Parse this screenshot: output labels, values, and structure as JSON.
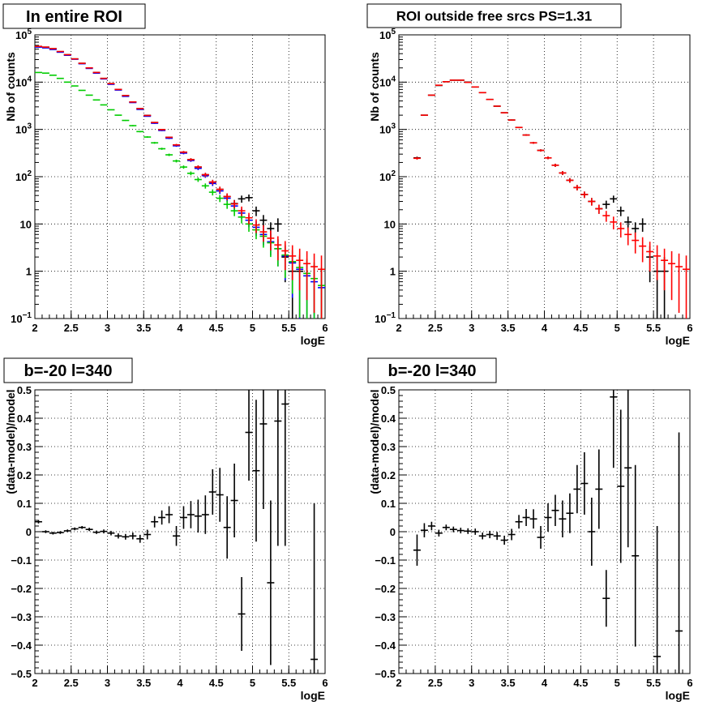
{
  "chart_data": [
    {
      "type": "scatter",
      "title": "In entire ROI",
      "xlabel": "logE",
      "ylabel": "Nb of counts",
      "xlim": [
        2,
        6
      ],
      "ylim": [
        0.1,
        100000
      ],
      "yscale": "log",
      "grid": true,
      "x_ticks": [
        "2",
        "2.5",
        "3",
        "3.5",
        "4",
        "4.5",
        "5",
        "5.5",
        "6"
      ],
      "y_ticks": [
        {
          "v": 0.1,
          "b": "10",
          "e": "−1"
        },
        {
          "v": 1,
          "b": "1",
          "e": ""
        },
        {
          "v": 10,
          "b": "10",
          "e": ""
        },
        {
          "v": 100,
          "b": "10",
          "e": "2"
        },
        {
          "v": 1000,
          "b": "10",
          "e": "3"
        },
        {
          "v": 10000,
          "b": "10",
          "e": "4"
        },
        {
          "v": 100000,
          "b": "10",
          "e": "5"
        }
      ],
      "series": [
        {
          "color": "#000000",
          "x_halfwidth": 0.05,
          "x": [
            2.05,
            2.15,
            2.25,
            2.35,
            2.45,
            2.55,
            2.65,
            2.75,
            2.85,
            2.95,
            3.05,
            3.15,
            3.25,
            3.35,
            3.45,
            3.55,
            3.65,
            3.75,
            3.85,
            3.95,
            4.05,
            4.15,
            4.25,
            4.35,
            4.45,
            4.55,
            4.65,
            4.75,
            4.85,
            4.95,
            5.05,
            5.15,
            5.25,
            5.35,
            5.45,
            5.55,
            5.65
          ],
          "y": [
            57000,
            55000,
            51000,
            44000,
            38000,
            31000,
            25000,
            20000,
            16000,
            12000,
            9300,
            7000,
            5200,
            3800,
            2750,
            1980,
            1400,
            990,
            680,
            470,
            330,
            230,
            160,
            110,
            77,
            54,
            38,
            27,
            34,
            36,
            19,
            12,
            8,
            10,
            2,
            1,
            1
          ]
        },
        {
          "color": "#0000ff",
          "x_halfwidth": 0.05,
          "x": [
            2.05,
            2.15,
            2.25,
            2.35,
            2.45,
            2.55,
            2.65,
            2.75,
            2.85,
            2.95,
            3.05,
            3.15,
            3.25,
            3.35,
            3.45,
            3.55,
            3.65,
            3.75,
            3.85,
            3.95,
            4.05,
            4.15,
            4.25,
            4.35,
            4.45,
            4.55,
            4.65,
            4.75,
            4.85,
            4.95,
            5.05,
            5.15,
            5.25,
            5.35,
            5.45,
            5.55,
            5.65,
            5.75,
            5.85,
            5.95
          ],
          "y": [
            55000,
            53000,
            49000,
            43000,
            37000,
            30500,
            24500,
            19500,
            15500,
            11700,
            9000,
            6800,
            5000,
            3700,
            2650,
            1900,
            1350,
            950,
            650,
            450,
            315,
            220,
            150,
            105,
            72,
            50,
            35,
            24,
            17,
            12,
            8.5,
            6,
            4.2,
            3,
            2.1,
            1.5,
            1.1,
            0.8,
            0.6,
            0.45
          ]
        },
        {
          "color": "#00cc00",
          "x_halfwidth": 0.05,
          "x": [
            2.05,
            2.15,
            2.25,
            2.35,
            2.45,
            2.55,
            2.65,
            2.75,
            2.85,
            2.95,
            3.05,
            3.15,
            3.25,
            3.35,
            3.45,
            3.55,
            3.65,
            3.75,
            3.85,
            3.95,
            4.05,
            4.15,
            4.25,
            4.35,
            4.45,
            4.55,
            4.65,
            4.75,
            4.85,
            4.95,
            5.05,
            5.15,
            5.25,
            5.35,
            5.45,
            5.55,
            5.65,
            5.75,
            5.85,
            5.95
          ],
          "y": [
            16000,
            15500,
            14000,
            12000,
            10000,
            8300,
            6700,
            5300,
            4200,
            3300,
            2600,
            2000,
            1550,
            1200,
            900,
            690,
            520,
            390,
            290,
            215,
            160,
            118,
            87,
            64,
            47,
            35,
            26,
            19,
            14,
            10,
            7.5,
            5.5,
            4,
            3,
            2.2,
            1.6,
            1.2,
            0.9,
            0.7,
            0.5
          ]
        },
        {
          "color": "#ff0000",
          "x_halfwidth": 0.05,
          "x": [
            2.05,
            2.15,
            2.25,
            2.35,
            2.45,
            2.55,
            2.65,
            2.75,
            2.85,
            2.95,
            3.05,
            3.15,
            3.25,
            3.35,
            3.45,
            3.55,
            3.65,
            3.75,
            3.85,
            3.95,
            4.05,
            4.15,
            4.25,
            4.35,
            4.45,
            4.55,
            4.65,
            4.75,
            4.85,
            4.95,
            5.05,
            5.15,
            5.25,
            5.35,
            5.45,
            5.55,
            5.65,
            5.75,
            5.85,
            5.95
          ],
          "y": [
            57000,
            55000,
            51000,
            44500,
            38000,
            31000,
            25000,
            20000,
            16000,
            12000,
            9300,
            7000,
            5200,
            3800,
            2750,
            1970,
            1400,
            990,
            680,
            470,
            330,
            230,
            160,
            110,
            77,
            54,
            38,
            26.5,
            19,
            13.5,
            9.5,
            6.8,
            5,
            3.6,
            2.7,
            2.1,
            1.7,
            1.45,
            1.25,
            1.1
          ]
        }
      ]
    },
    {
      "type": "scatter",
      "title": "ROI outside free srcs PS=1.31",
      "xlabel": "logE",
      "ylabel": "Nb of counts",
      "xlim": [
        2,
        6
      ],
      "ylim": [
        0.1,
        100000
      ],
      "yscale": "log",
      "grid": true,
      "x_ticks": [
        "2",
        "2.5",
        "3",
        "3.5",
        "4",
        "4.5",
        "5",
        "5.5",
        "6"
      ],
      "y_ticks": [
        {
          "v": 0.1,
          "b": "10",
          "e": "−1"
        },
        {
          "v": 1,
          "b": "1",
          "e": ""
        },
        {
          "v": 10,
          "b": "10",
          "e": ""
        },
        {
          "v": 100,
          "b": "10",
          "e": "2"
        },
        {
          "v": 1000,
          "b": "10",
          "e": "3"
        },
        {
          "v": 10000,
          "b": "10",
          "e": "4"
        },
        {
          "v": 100000,
          "b": "10",
          "e": "5"
        }
      ],
      "series": [
        {
          "color": "#000000",
          "x_halfwidth": 0.05,
          "x": [
            2.25,
            2.35,
            2.45,
            2.55,
            2.65,
            2.75,
            2.85,
            2.95,
            3.05,
            3.15,
            3.25,
            3.35,
            3.45,
            3.55,
            3.65,
            3.75,
            3.85,
            3.95,
            4.05,
            4.15,
            4.25,
            4.35,
            4.45,
            4.55,
            4.65,
            4.75,
            4.85,
            4.95,
            5.05,
            5.15,
            5.25,
            5.35,
            5.45,
            5.55,
            5.65
          ],
          "y": [
            250,
            2000,
            5300,
            8500,
            10200,
            11000,
            11000,
            10000,
            7900,
            6000,
            4300,
            3100,
            2250,
            1580,
            1100,
            760,
            520,
            360,
            250,
            175,
            120,
            84,
            59,
            42,
            30,
            21,
            26,
            34,
            19,
            11,
            8,
            10,
            2,
            1,
            1
          ]
        },
        {
          "color": "#ff0000",
          "x_halfwidth": 0.05,
          "x": [
            2.25,
            2.35,
            2.45,
            2.55,
            2.65,
            2.75,
            2.85,
            2.95,
            3.05,
            3.15,
            3.25,
            3.35,
            3.45,
            3.55,
            3.65,
            3.75,
            3.85,
            3.95,
            4.05,
            4.15,
            4.25,
            4.35,
            4.45,
            4.55,
            4.65,
            4.75,
            4.85,
            4.95,
            5.05,
            5.15,
            5.25,
            5.35,
            5.45,
            5.55,
            5.65,
            5.75,
            5.85,
            5.95
          ],
          "y": [
            245,
            2000,
            5300,
            8600,
            10200,
            11000,
            11000,
            9900,
            7900,
            6000,
            4300,
            3100,
            2250,
            1580,
            1100,
            760,
            520,
            360,
            250,
            175,
            120,
            84,
            59,
            42,
            30,
            21,
            15,
            11,
            8,
            6,
            4.5,
            3.4,
            2.6,
            2.1,
            1.7,
            1.45,
            1.25,
            1.1
          ]
        }
      ]
    },
    {
      "type": "scatter",
      "title": "b=-20 l=340",
      "xlabel": "logE",
      "ylabel": "(data-model)/model",
      "xlim": [
        2,
        6
      ],
      "ylim": [
        -0.5,
        0.5
      ],
      "yscale": "linear",
      "grid": true,
      "x_ticks": [
        "2",
        "2.5",
        "3",
        "3.5",
        "4",
        "4.5",
        "5",
        "5.5",
        "6"
      ],
      "y_ticks": [
        {
          "v": -0.5,
          "b": "−0.5",
          "e": ""
        },
        {
          "v": -0.4,
          "b": "−0.4",
          "e": ""
        },
        {
          "v": -0.3,
          "b": "−0.3",
          "e": ""
        },
        {
          "v": -0.2,
          "b": "−0.2",
          "e": ""
        },
        {
          "v": -0.1,
          "b": "−0.1",
          "e": ""
        },
        {
          "v": 0,
          "b": "0",
          "e": ""
        },
        {
          "v": 0.1,
          "b": "0.1",
          "e": ""
        },
        {
          "v": 0.2,
          "b": "0.2",
          "e": ""
        },
        {
          "v": 0.3,
          "b": "0.3",
          "e": ""
        },
        {
          "v": 0.4,
          "b": "0.4",
          "e": ""
        },
        {
          "v": 0.5,
          "b": "0.5",
          "e": ""
        }
      ],
      "series": [
        {
          "color": "#000000",
          "x_halfwidth": 0.05,
          "x": [
            2.05,
            2.15,
            2.25,
            2.35,
            2.45,
            2.55,
            2.65,
            2.75,
            2.85,
            2.95,
            3.05,
            3.15,
            3.25,
            3.35,
            3.45,
            3.55,
            3.65,
            3.75,
            3.85,
            3.95,
            4.05,
            4.15,
            4.25,
            4.35,
            4.45,
            4.55,
            4.65,
            4.75,
            4.85,
            4.95,
            5.05,
            5.15,
            5.25,
            5.35,
            5.45,
            5.85
          ],
          "y": [
            0.035,
            0,
            -0.005,
            -0.003,
            0.003,
            0.01,
            0.015,
            0.008,
            -0.002,
            0.001,
            -0.005,
            -0.015,
            -0.018,
            -0.015,
            -0.025,
            -0.01,
            0.035,
            0.05,
            0.06,
            -0.015,
            0.05,
            0.06,
            0.055,
            0.06,
            0.14,
            0.13,
            0.015,
            0.11,
            -0.29,
            0.35,
            0.215,
            0.38,
            -0.18,
            0.39,
            0.45,
            -0.45
          ],
          "err": [
            0.006,
            0.005,
            0.005,
            0.005,
            0.005,
            0.005,
            0.005,
            0.006,
            0.006,
            0.007,
            0.008,
            0.009,
            0.01,
            0.012,
            0.014,
            0.017,
            0.02,
            0.025,
            0.03,
            0.035,
            0.04,
            0.048,
            0.058,
            0.068,
            0.08,
            0.095,
            0.11,
            0.13,
            0.13,
            0.17,
            0.25,
            0.3,
            0.29,
            0.44,
            0.5,
            0.55
          ]
        }
      ]
    },
    {
      "type": "scatter",
      "title": "b=-20 l=340",
      "xlabel": "logE",
      "ylabel": "(data-model)/model",
      "xlim": [
        2,
        6
      ],
      "ylim": [
        -0.5,
        0.5
      ],
      "yscale": "linear",
      "grid": true,
      "x_ticks": [
        "2",
        "2.5",
        "3",
        "3.5",
        "4",
        "4.5",
        "5",
        "5.5",
        "6"
      ],
      "y_ticks": [
        {
          "v": -0.5,
          "b": "−0.5",
          "e": ""
        },
        {
          "v": -0.4,
          "b": "−0.4",
          "e": ""
        },
        {
          "v": -0.3,
          "b": "−0.3",
          "e": ""
        },
        {
          "v": -0.2,
          "b": "−0.2",
          "e": ""
        },
        {
          "v": -0.1,
          "b": "−0.1",
          "e": ""
        },
        {
          "v": 0,
          "b": "0",
          "e": ""
        },
        {
          "v": 0.1,
          "b": "0.1",
          "e": ""
        },
        {
          "v": 0.2,
          "b": "0.2",
          "e": ""
        },
        {
          "v": 0.3,
          "b": "0.3",
          "e": ""
        },
        {
          "v": 0.4,
          "b": "0.4",
          "e": ""
        },
        {
          "v": 0.5,
          "b": "0.5",
          "e": ""
        }
      ],
      "series": [
        {
          "color": "#000000",
          "x_halfwidth": 0.05,
          "x": [
            2.25,
            2.35,
            2.45,
            2.55,
            2.65,
            2.75,
            2.85,
            2.95,
            3.05,
            3.15,
            3.25,
            3.35,
            3.45,
            3.55,
            3.65,
            3.75,
            3.85,
            3.95,
            4.05,
            4.15,
            4.25,
            4.35,
            4.45,
            4.55,
            4.65,
            4.75,
            4.85,
            4.95,
            5.05,
            5.15,
            5.25,
            5.55,
            5.85
          ],
          "y": [
            -0.065,
            0.005,
            0.02,
            -0.005,
            0.015,
            0.008,
            0.004,
            0.002,
            0,
            -0.015,
            -0.01,
            -0.015,
            -0.03,
            -0.01,
            0.035,
            0.05,
            0.045,
            -0.02,
            0.05,
            0.075,
            0.045,
            0.065,
            0.15,
            0.17,
            0,
            0.15,
            -0.235,
            0.475,
            0.16,
            0.225,
            -0.085,
            -0.44,
            -0.35
          ],
          "err": [
            0.055,
            0.025,
            0.015,
            0.012,
            0.01,
            0.01,
            0.01,
            0.01,
            0.011,
            0.012,
            0.013,
            0.014,
            0.016,
            0.02,
            0.024,
            0.03,
            0.034,
            0.04,
            0.05,
            0.055,
            0.065,
            0.07,
            0.085,
            0.11,
            0.12,
            0.14,
            0.1,
            0.25,
            0.27,
            0.28,
            0.32,
            0.46,
            0.7
          ]
        }
      ]
    }
  ]
}
